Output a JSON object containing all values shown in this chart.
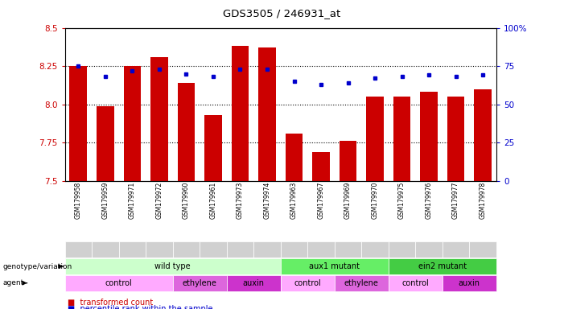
{
  "title": "GDS3505 / 246931_at",
  "samples": [
    "GSM179958",
    "GSM179959",
    "GSM179971",
    "GSM179972",
    "GSM179960",
    "GSM179961",
    "GSM179973",
    "GSM179974",
    "GSM179963",
    "GSM179967",
    "GSM179969",
    "GSM179970",
    "GSM179975",
    "GSM179976",
    "GSM179977",
    "GSM179978"
  ],
  "bar_values": [
    8.25,
    7.99,
    8.25,
    8.31,
    8.14,
    7.93,
    8.38,
    8.37,
    7.81,
    7.69,
    7.76,
    8.05,
    8.05,
    8.08,
    8.05,
    8.1
  ],
  "dot_values": [
    75,
    68,
    72,
    73,
    70,
    68,
    73,
    73,
    65,
    63,
    64,
    67,
    68,
    69,
    68,
    69
  ],
  "ylim_left": [
    7.5,
    8.5
  ],
  "ylim_right": [
    0,
    100
  ],
  "yticks_left": [
    7.5,
    7.75,
    8.0,
    8.25,
    8.5
  ],
  "yticks_right": [
    0,
    25,
    50,
    75,
    100
  ],
  "ytick_labels_right": [
    "0",
    "25",
    "50",
    "75",
    "100%"
  ],
  "bar_color": "#cc0000",
  "dot_color": "#0000cc",
  "genotype_groups": [
    {
      "label": "wild type",
      "start": 0,
      "end": 7,
      "color": "#ccffcc"
    },
    {
      "label": "aux1 mutant",
      "start": 8,
      "end": 11,
      "color": "#66ee66"
    },
    {
      "label": "ein2 mutant",
      "start": 12,
      "end": 15,
      "color": "#44cc44"
    }
  ],
  "agent_groups": [
    {
      "label": "control",
      "start": 0,
      "end": 3,
      "color": "#ffaaff"
    },
    {
      "label": "ethylene",
      "start": 4,
      "end": 5,
      "color": "#dd66dd"
    },
    {
      "label": "auxin",
      "start": 6,
      "end": 7,
      "color": "#cc33cc"
    },
    {
      "label": "control",
      "start": 8,
      "end": 9,
      "color": "#ffaaff"
    },
    {
      "label": "ethylene",
      "start": 10,
      "end": 11,
      "color": "#dd66dd"
    },
    {
      "label": "control",
      "start": 12,
      "end": 13,
      "color": "#ffaaff"
    },
    {
      "label": "auxin",
      "start": 14,
      "end": 15,
      "color": "#cc33cc"
    }
  ]
}
